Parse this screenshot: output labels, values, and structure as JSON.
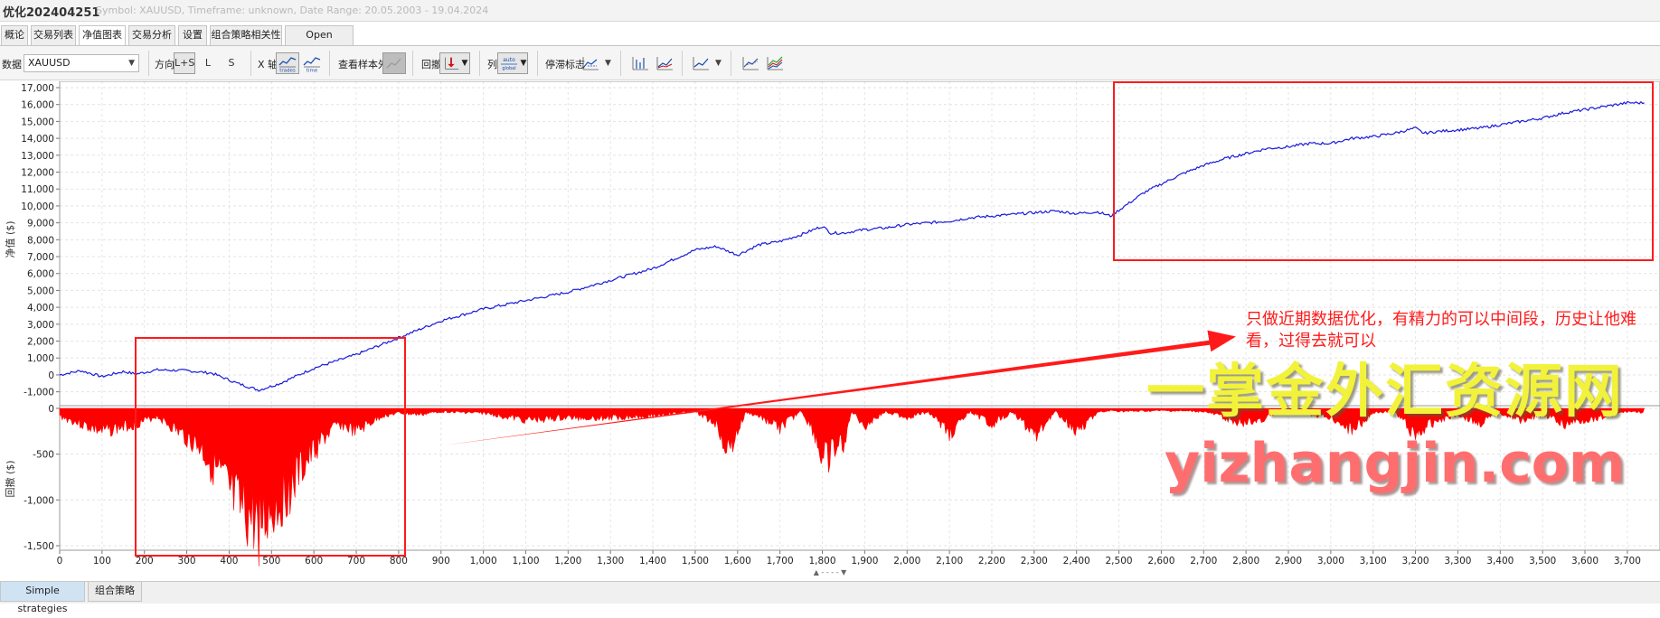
{
  "window": {
    "title": "优化202404251",
    "subtitle": "Symbol: XAUUSD, Timeframe: unknown, Date Range: 20.05.2003 - 19.04.2024"
  },
  "tabs": [
    {
      "label": "概论"
    },
    {
      "label": "交易列表"
    },
    {
      "label": "净值图表"
    },
    {
      "label": "交易分析"
    },
    {
      "label": "设置"
    },
    {
      "label": "组合策略相关性"
    },
    {
      "label": "Open balances"
    }
  ],
  "active_tab": "净值图表",
  "toolbar": {
    "data_label": "数据",
    "data_value": "XAUUSD",
    "direction_label": "方向",
    "direction_options": [
      "L+S",
      "L",
      "S"
    ],
    "xaxis_label": "X 轴",
    "xaxis_trades": "trades",
    "xaxis_time": "time",
    "out_of_sample_label": "查看样本外",
    "drawdown_label": "回撤",
    "columns_label": "列",
    "columns_auto": "auto",
    "columns_auto_sub": "global",
    "stagnation_label": "停滞标志"
  },
  "chart_data": [
    {
      "type": "line",
      "ylabel": "净值 ($)",
      "ylim": [
        -1500,
        17000
      ],
      "yticks": [
        "17,000",
        "16,000",
        "15,000",
        "14,000",
        "13,000",
        "12,000",
        "11,000",
        "10,000",
        "9,000",
        "8,000",
        "7,000",
        "6,000",
        "5,000",
        "4,000",
        "3,000",
        "2,000",
        "1,000",
        "0",
        "-1,000"
      ],
      "grid": true,
      "series": [
        {
          "color": "#1a1adb",
          "x": [
            0,
            50,
            100,
            150,
            180,
            230,
            300,
            360,
            420,
            470,
            520,
            600,
            700,
            800,
            900,
            1000,
            1100,
            1200,
            1300,
            1400,
            1500,
            1550,
            1600,
            1650,
            1700,
            1750,
            1800,
            1820,
            1850,
            1900,
            1950,
            2000,
            2050,
            2100,
            2150,
            2200,
            2250,
            2300,
            2350,
            2400,
            2450,
            2480,
            2520,
            2560,
            2600,
            2650,
            2700,
            2750,
            2800,
            2850,
            2900,
            2950,
            3000,
            3050,
            3100,
            3150,
            3200,
            3220,
            3250,
            3300,
            3350,
            3400,
            3450,
            3500,
            3550,
            3600,
            3650,
            3700,
            3740
          ],
          "y": [
            0,
            250,
            -100,
            200,
            50,
            300,
            250,
            100,
            -500,
            -900,
            -500,
            400,
            1200,
            2200,
            3200,
            3900,
            4400,
            4900,
            5600,
            6300,
            7400,
            7600,
            7100,
            7700,
            7900,
            8300,
            8800,
            8400,
            8400,
            8600,
            8700,
            8900,
            9000,
            9100,
            9300,
            9400,
            9500,
            9600,
            9700,
            9550,
            9650,
            9400,
            10100,
            10800,
            11300,
            11900,
            12400,
            12800,
            13100,
            13400,
            13500,
            13700,
            13700,
            14000,
            14100,
            14300,
            14600,
            14300,
            14400,
            14500,
            14600,
            14800,
            15000,
            15200,
            15500,
            15700,
            15900,
            16100,
            16100
          ]
        }
      ]
    },
    {
      "type": "area",
      "ylabel": "回撤 ($)",
      "ylim": [
        -1500,
        0
      ],
      "yticks": [
        "0",
        "-500",
        "-1,000",
        "-1,500"
      ],
      "color": "#ff0000",
      "x": [
        0,
        100,
        180,
        230,
        280,
        330,
        380,
        420,
        470,
        520,
        570,
        620,
        660,
        700,
        760,
        800,
        850,
        900,
        1000,
        1100,
        1200,
        1300,
        1400,
        1500,
        1550,
        1580,
        1600,
        1620,
        1650,
        1700,
        1750,
        1780,
        1800,
        1850,
        1870,
        1900,
        1950,
        2000,
        2050,
        2100,
        2150,
        2200,
        2250,
        2300,
        2350,
        2400,
        2450,
        2480,
        2520,
        2600,
        2700,
        2800,
        2900,
        3000,
        3050,
        3100,
        3150,
        3200,
        3250,
        3300,
        3350,
        3400,
        3450,
        3500,
        3550,
        3600,
        3650,
        3700,
        3740
      ],
      "y": [
        -100,
        -300,
        -200,
        -100,
        -300,
        -500,
        -900,
        -1300,
        -1500,
        -1200,
        -800,
        -400,
        -200,
        -300,
        -100,
        -60,
        -80,
        -40,
        -60,
        -150,
        -120,
        -120,
        -90,
        -40,
        -200,
        -580,
        -300,
        -50,
        -100,
        -250,
        -30,
        -300,
        -680,
        -450,
        -40,
        -220,
        -40,
        -120,
        -40,
        -320,
        -40,
        -200,
        -40,
        -350,
        -40,
        -280,
        -60,
        -30,
        -40,
        -30,
        -40,
        -200,
        -30,
        -120,
        -280,
        -60,
        -30,
        -350,
        -150,
        -80,
        -200,
        -60,
        -150,
        -80,
        -200,
        -150,
        -100,
        -40,
        -50
      ]
    }
  ],
  "xaxis_ticks": [
    "0",
    "100",
    "200",
    "300",
    "400",
    "500",
    "600",
    "700",
    "800",
    "900",
    "1,000",
    "1,100",
    "1,200",
    "1,300",
    "1,400",
    "1,500",
    "1,600",
    "1,700",
    "1,800",
    "1,900",
    "2,000",
    "2,100",
    "2,200",
    "2,300",
    "2,400",
    "2,500",
    "2,600",
    "2,700",
    "2,800",
    "2,900",
    "3,000",
    "3,100",
    "3,200",
    "3,300",
    "3,400",
    "3,500",
    "3,600",
    "3,700"
  ],
  "annotation": {
    "text": "只做近期数据优化，有精力的可以中间段，历史让他难看，过得去就可以"
  },
  "watermark": {
    "line1": "一掌金外汇资源网",
    "line2": "yizhangjin.com"
  },
  "collapse_handle": "▲ - - - - ▼",
  "bottom_tabs": [
    {
      "label": "Simple strategies"
    },
    {
      "label": "组合策略"
    }
  ]
}
